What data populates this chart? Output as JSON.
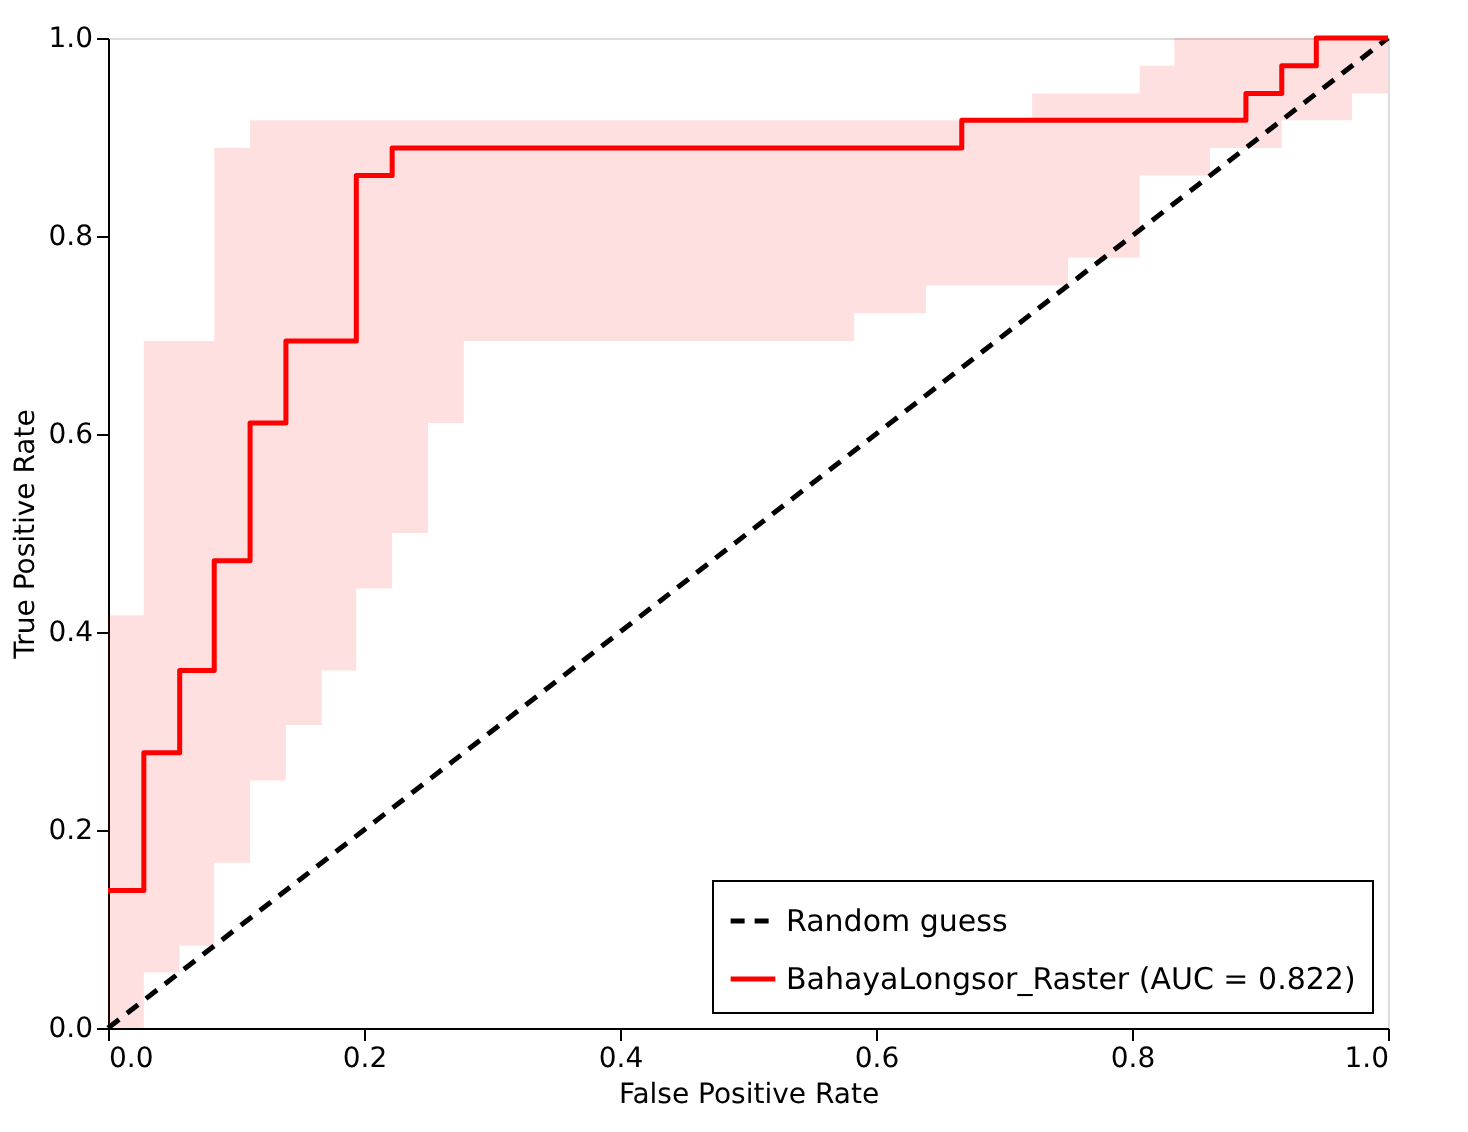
{
  "chart_data": {
    "type": "line",
    "xlabel": "False Positive Rate",
    "ylabel": "True Positive Rate",
    "xlim": [
      0,
      1
    ],
    "ylim": [
      0,
      1
    ],
    "xticks": [
      {
        "value": 0,
        "label": "0.0"
      },
      {
        "value": 0.2,
        "label": "0.2"
      },
      {
        "value": 0.4,
        "label": "0.4"
      },
      {
        "value": 0.6,
        "label": "0.6"
      },
      {
        "value": 0.8,
        "label": "0.8"
      },
      {
        "value": 1,
        "label": "1.0"
      }
    ],
    "yticks": [
      {
        "value": 0,
        "label": "0.0"
      },
      {
        "value": 0.2,
        "label": "0.2"
      },
      {
        "value": 0.4,
        "label": "0.4"
      },
      {
        "value": 0.6,
        "label": "0.6"
      },
      {
        "value": 0.8,
        "label": "0.8"
      },
      {
        "value": 1,
        "label": "1.0"
      }
    ],
    "grid": false,
    "legend": "bottom right",
    "marker": "none",
    "series": [
      {
        "name": "Random guess",
        "type": "line",
        "color": "#000000",
        "line_style": "dashed",
        "x": [
          0,
          1
        ],
        "values": [
          0,
          1
        ]
      },
      {
        "name": "BahayaLongsor_Raster (AUC = 0.822)",
        "type": "step",
        "color": "#ff0000",
        "line_style": "solid",
        "x": [
          0,
          0.028,
          0.056,
          0.083,
          0.111,
          0.139,
          0.167,
          0.194,
          0.222,
          0.25,
          0.278,
          0.583,
          0.639,
          0.667,
          0.722,
          0.75,
          0.806,
          0.833,
          0.861,
          0.889,
          0.917,
          0.944,
          0.972,
          1.0
        ],
        "values": [
          0.139,
          0.278,
          0.361,
          0.472,
          0.611,
          0.694,
          0.694,
          0.861,
          0.889,
          0.889,
          0.889,
          0.889,
          0.889,
          0.917,
          0.917,
          0.917,
          0.917,
          0.917,
          0.917,
          0.944,
          0.972,
          1.0,
          1.0,
          1.0
        ],
        "lower": [
          0,
          0.056,
          0.083,
          0.167,
          0.25,
          0.306,
          0.361,
          0.444,
          0.5,
          0.611,
          0.694,
          0.722,
          0.75,
          0.75,
          0.75,
          0.778,
          0.861,
          0.861,
          0.889,
          0.889,
          0.917,
          0.917,
          0.944,
          0.944
        ],
        "upper": [
          0.417,
          0.694,
          0.694,
          0.889,
          0.917,
          0.917,
          0.917,
          0.917,
          0.917,
          0.917,
          0.917,
          0.917,
          0.917,
          0.917,
          0.944,
          0.944,
          0.972,
          1.0,
          1.0,
          1.0,
          1.0,
          1.0,
          1.0,
          1.0
        ]
      }
    ]
  }
}
